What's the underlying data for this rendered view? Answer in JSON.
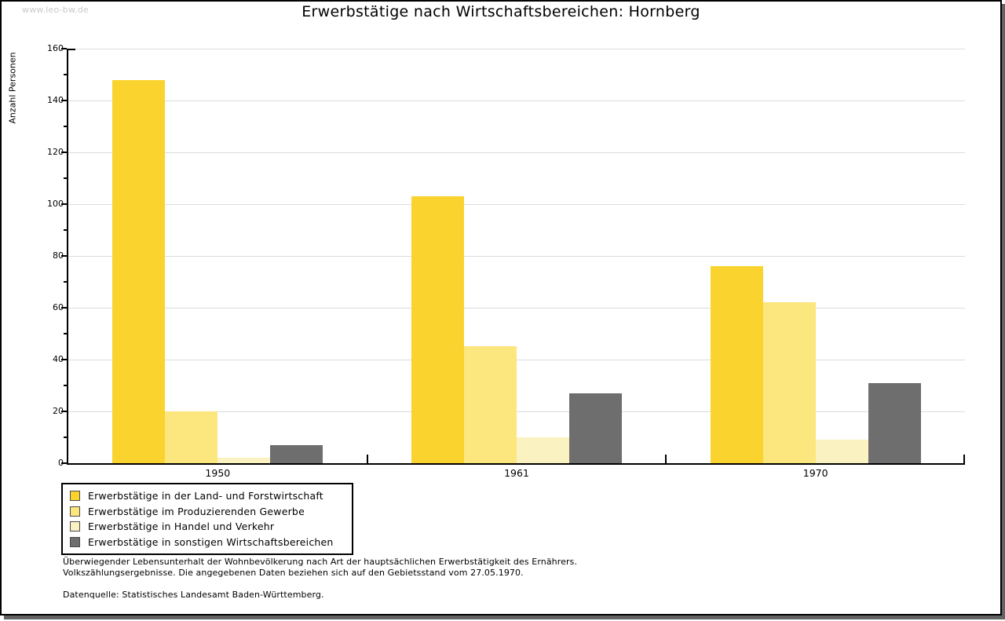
{
  "watermark": "www.leo-bw.de",
  "title": "Erwerbstätige nach Wirtschaftsbereichen: Hornberg",
  "chart_data": {
    "type": "bar",
    "title": "Erwerbstätige nach Wirtschaftsbereichen: Hornberg",
    "xlabel": "",
    "ylabel": "Anzahl Personen",
    "ylim": [
      0,
      160
    ],
    "yticks": [
      0,
      20,
      40,
      60,
      80,
      100,
      120,
      140,
      160
    ],
    "minor_ytick_step": 10,
    "grid": true,
    "legend_position": "bottom-left",
    "categories": [
      "1950",
      "1961",
      "1970"
    ],
    "series": [
      {
        "name": "Erwerbstätige in der Land- und Forstwirtschaft",
        "color": "#FBD32E",
        "values": [
          148,
          103,
          76
        ]
      },
      {
        "name": "Erwerbstätige im Produzierenden Gewerbe",
        "color": "#FCE67E",
        "values": [
          20,
          45,
          62
        ]
      },
      {
        "name": "Erwerbstätige in Handel und Verkehr",
        "color": "#FBF2C1",
        "values": [
          2,
          10,
          9
        ]
      },
      {
        "name": "Erwerbstätige in sonstigen Wirtschaftsbereichen",
        "color": "#6E6E6E",
        "values": [
          7,
          27,
          31
        ]
      }
    ]
  },
  "footnotes": {
    "line1": "Überwiegender Lebensunterhalt der Wohnbevölkerung nach Art der hauptsächlichen Erwerbstätigkeit des Ernährers.",
    "line2": "Volkszählungsergebnisse. Die angegebenen Daten beziehen sich auf den Gebietsstand vom 27.05.1970.",
    "source": "Datenquelle: Statistisches Landesamt Baden-Württemberg."
  }
}
